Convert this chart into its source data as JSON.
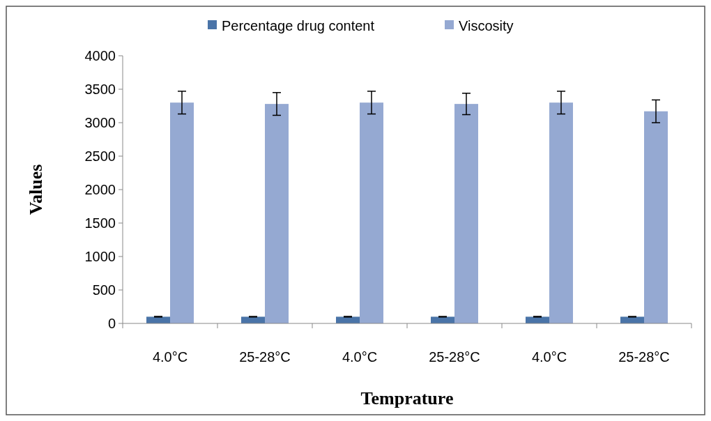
{
  "chart_data": {
    "type": "bar",
    "xlabel": "Temprature",
    "ylabel": "Values",
    "categories": [
      "4.0°C",
      "25-28°C",
      "4.0°C",
      "25-28°C",
      "4.0°C",
      "25-28°C"
    ],
    "series": [
      {
        "name": "Percentage drug content",
        "color": "#4a74a8",
        "values": [
          100,
          100,
          100,
          100,
          100,
          100
        ],
        "errors": [
          5,
          4,
          5,
          4,
          5,
          4
        ]
      },
      {
        "name": "Viscosity",
        "color": "#95a9d2",
        "values": [
          3300,
          3280,
          3300,
          3280,
          3300,
          3170
        ],
        "errors": [
          170,
          170,
          170,
          160,
          170,
          170
        ]
      }
    ],
    "ylim": [
      0,
      4000
    ],
    "yticks": [
      0,
      500,
      1000,
      1500,
      2000,
      2500,
      3000,
      3500,
      4000
    ],
    "grid": false,
    "legend": "top"
  }
}
